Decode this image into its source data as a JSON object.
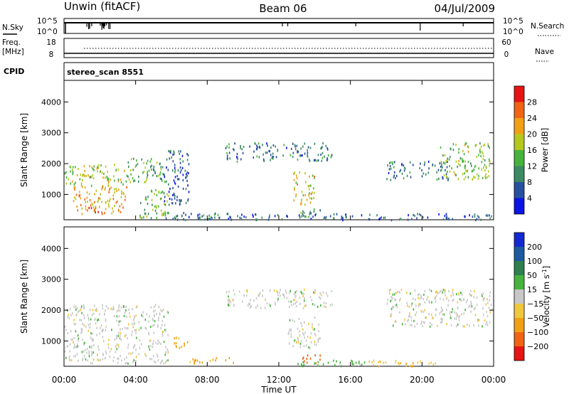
{
  "header": {
    "station": "Unwin (fitACF)",
    "beam": "Beam 06",
    "date": "04/Jul/2009"
  },
  "noise_panel": {
    "left_label": "N.Sky",
    "right_label": "N.Search",
    "tick_top": "10^5",
    "tick_bottom": "10^0"
  },
  "freq_panel": {
    "left_label_1": "Freq.",
    "left_label_2": "[MHz]",
    "left_tick_top": "18",
    "left_tick_bottom": "8",
    "right_label": "Nave",
    "right_tick_top": "60",
    "right_tick_bottom": "0"
  },
  "cpid_panel": {
    "label": "CPID",
    "value": "stereo_scan 8551"
  },
  "chart_data": [
    {
      "type": "heatmap",
      "quantity": "Power",
      "ylabel": "Slant Range [km]",
      "colorbar_label": "Power [dB]",
      "colorbar_ticks": [
        4,
        8,
        12,
        16,
        20,
        24,
        28
      ],
      "colorbar_range": [
        0,
        30
      ],
      "colors": [
        "#0a14e6",
        "#2850a0",
        "#3c8a64",
        "#46b43c",
        "#b4c81e",
        "#f0a014",
        "#f06414",
        "#e61414"
      ],
      "yticks": [
        1000,
        2000,
        3000,
        4000
      ],
      "ylim": [
        180,
        4700
      ],
      "xlim_hours": [
        0,
        24
      ],
      "echo_regions": [
        {
          "t": [
            0.0,
            3.5
          ],
          "range": [
            1300,
            2000
          ],
          "value": 16
        },
        {
          "t": [
            3.5,
            5.8
          ],
          "range": [
            1400,
            2200
          ],
          "value": 12
        },
        {
          "t": [
            0.5,
            3.5
          ],
          "range": [
            400,
            1300
          ],
          "value": 20
        },
        {
          "t": [
            1.2,
            2.2
          ],
          "range": [
            450,
            700
          ],
          "value": 28
        },
        {
          "t": [
            4.2,
            5.8
          ],
          "range": [
            250,
            1200
          ],
          "value": 14
        },
        {
          "t": [
            5.5,
            7.0
          ],
          "range": [
            700,
            2500
          ],
          "value": 6
        },
        {
          "t": [
            5.5,
            9.5
          ],
          "range": [
            250,
            450
          ],
          "value": 10
        },
        {
          "t": [
            9.0,
            15.0
          ],
          "range": [
            2100,
            2700
          ],
          "value": 8
        },
        {
          "t": [
            12.8,
            14.0
          ],
          "range": [
            700,
            1800
          ],
          "value": 18
        },
        {
          "t": [
            13.0,
            14.3
          ],
          "range": [
            300,
            600
          ],
          "value": 12
        },
        {
          "t": [
            6.0,
            24.0
          ],
          "range": [
            200,
            400
          ],
          "value": 6
        },
        {
          "t": [
            18.0,
            21.5
          ],
          "range": [
            1500,
            2100
          ],
          "value": 8
        },
        {
          "t": [
            21.0,
            23.8
          ],
          "range": [
            1500,
            2700
          ],
          "value": 14
        }
      ]
    },
    {
      "type": "heatmap",
      "quantity": "Velocity",
      "ylabel": "Slant Range [km]",
      "xlabel": "Time UT",
      "colorbar_label": "Velocity [m s^-1]",
      "colorbar_ticks": [
        -200,
        -100,
        -50,
        -15,
        15,
        50,
        100,
        200
      ],
      "colors": [
        "#e61414",
        "#f06414",
        "#f0a014",
        "#f0c83c",
        "#c8c8c8",
        "#46b43c",
        "#2f7f4f",
        "#1e5aa0",
        "#1428d2"
      ],
      "yticks": [
        1000,
        2000,
        3000,
        4000
      ],
      "ylim": [
        180,
        4700
      ],
      "xticks": [
        "00:00",
        "04:00",
        "08:00",
        "12:00",
        "16:00",
        "20:00",
        "00:00"
      ],
      "xlim_hours": [
        0,
        24
      ],
      "echo_regions": [
        {
          "t": [
            0.0,
            5.8
          ],
          "range": [
            300,
            2200
          ],
          "value": 0
        },
        {
          "t": [
            6.0,
            7.0
          ],
          "range": [
            800,
            1200
          ],
          "value": -60
        },
        {
          "t": [
            7.0,
            9.5
          ],
          "range": [
            300,
            500
          ],
          "value": -60
        },
        {
          "t": [
            9.0,
            15.0
          ],
          "range": [
            2100,
            2700
          ],
          "value": 0
        },
        {
          "t": [
            12.5,
            14.3
          ],
          "range": [
            800,
            1800
          ],
          "value": 0
        },
        {
          "t": [
            13.2,
            14.3
          ],
          "range": [
            300,
            600
          ],
          "value": -150
        },
        {
          "t": [
            13.0,
            17.0
          ],
          "range": [
            200,
            400
          ],
          "value": 30
        },
        {
          "t": [
            17.0,
            21.0
          ],
          "range": [
            200,
            400
          ],
          "value": -40
        },
        {
          "t": [
            18.0,
            24.0
          ],
          "range": [
            1500,
            2700
          ],
          "value": 0
        }
      ]
    }
  ]
}
